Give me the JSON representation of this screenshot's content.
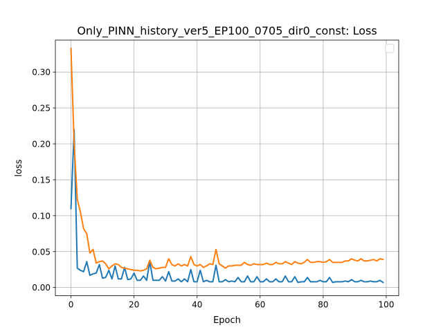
{
  "chart_data": {
    "type": "line",
    "title": "Only_PINN_history_ver5_EP100_0705_dir0_const: Loss",
    "xlabel": "Epoch",
    "ylabel": "loss",
    "xlim": [
      -4.95,
      103.95
    ],
    "ylim": [
      -0.0115,
      0.3445
    ],
    "xticks": [
      0,
      20,
      40,
      60,
      80,
      100
    ],
    "xtick_labels": [
      "0",
      "20",
      "40",
      "60",
      "80",
      "100"
    ],
    "yticks": [
      0.0,
      0.05,
      0.1,
      0.15,
      0.2,
      0.25,
      0.3
    ],
    "ytick_labels": [
      "0.00",
      "0.05",
      "0.10",
      "0.15",
      "0.20",
      "0.25",
      "0.30"
    ],
    "grid": true,
    "legend": "top-right (empty)",
    "series": [
      {
        "color": "#1f77b4",
        "x": [
          0,
          1,
          2,
          3,
          4,
          5,
          6,
          7,
          8,
          9,
          10,
          11,
          12,
          13,
          14,
          15,
          16,
          17,
          18,
          19,
          20,
          21,
          22,
          23,
          24,
          25,
          26,
          27,
          28,
          29,
          30,
          31,
          32,
          33,
          34,
          35,
          36,
          37,
          38,
          39,
          40,
          41,
          42,
          43,
          44,
          45,
          46,
          47,
          48,
          49,
          50,
          51,
          52,
          53,
          54,
          55,
          56,
          57,
          58,
          59,
          60,
          61,
          62,
          63,
          64,
          65,
          66,
          67,
          68,
          69,
          70,
          71,
          72,
          73,
          74,
          75,
          76,
          77,
          78,
          79,
          80,
          81,
          82,
          83,
          84,
          85,
          86,
          87,
          88,
          89,
          90,
          91,
          92,
          93,
          94,
          95,
          96,
          97,
          98,
          99
        ],
        "values": [
          0.11,
          0.22,
          0.027,
          0.024,
          0.022,
          0.036,
          0.017,
          0.019,
          0.02,
          0.032,
          0.013,
          0.014,
          0.024,
          0.012,
          0.03,
          0.012,
          0.012,
          0.028,
          0.011,
          0.012,
          0.02,
          0.01,
          0.01,
          0.016,
          0.01,
          0.036,
          0.01,
          0.01,
          0.01,
          0.015,
          0.009,
          0.022,
          0.009,
          0.009,
          0.012,
          0.008,
          0.012,
          0.008,
          0.025,
          0.008,
          0.008,
          0.024,
          0.008,
          0.01,
          0.008,
          0.008,
          0.031,
          0.008,
          0.008,
          0.011,
          0.008,
          0.009,
          0.008,
          0.014,
          0.008,
          0.008,
          0.016,
          0.008,
          0.008,
          0.015,
          0.008,
          0.008,
          0.012,
          0.008,
          0.008,
          0.012,
          0.008,
          0.008,
          0.016,
          0.008,
          0.008,
          0.015,
          0.007,
          0.008,
          0.008,
          0.014,
          0.008,
          0.008,
          0.008,
          0.01,
          0.008,
          0.008,
          0.014,
          0.007,
          0.008,
          0.008,
          0.008,
          0.009,
          0.008,
          0.011,
          0.008,
          0.008,
          0.01,
          0.008,
          0.008,
          0.009,
          0.008,
          0.008,
          0.01,
          0.007
        ]
      },
      {
        "color": "#ff7f0e",
        "x": [
          0,
          1,
          2,
          3,
          4,
          5,
          6,
          7,
          8,
          9,
          10,
          11,
          12,
          13,
          14,
          15,
          16,
          17,
          18,
          19,
          20,
          21,
          22,
          23,
          24,
          25,
          26,
          27,
          28,
          29,
          30,
          31,
          32,
          33,
          34,
          35,
          36,
          37,
          38,
          39,
          40,
          41,
          42,
          43,
          44,
          45,
          46,
          47,
          48,
          49,
          50,
          51,
          52,
          53,
          54,
          55,
          56,
          57,
          58,
          59,
          60,
          61,
          62,
          63,
          64,
          65,
          66,
          67,
          68,
          69,
          70,
          71,
          72,
          73,
          74,
          75,
          76,
          77,
          78,
          79,
          80,
          81,
          82,
          83,
          84,
          85,
          86,
          87,
          88,
          89,
          90,
          91,
          92,
          93,
          94,
          95,
          96,
          97,
          98,
          99
        ],
        "values": [
          0.333,
          0.2,
          0.123,
          0.105,
          0.082,
          0.075,
          0.048,
          0.053,
          0.034,
          0.036,
          0.037,
          0.033,
          0.026,
          0.03,
          0.033,
          0.032,
          0.028,
          0.027,
          0.026,
          0.025,
          0.024,
          0.024,
          0.023,
          0.024,
          0.026,
          0.038,
          0.028,
          0.026,
          0.027,
          0.028,
          0.028,
          0.04,
          0.032,
          0.03,
          0.033,
          0.03,
          0.032,
          0.03,
          0.043,
          0.032,
          0.03,
          0.032,
          0.028,
          0.03,
          0.033,
          0.032,
          0.053,
          0.033,
          0.03,
          0.027,
          0.03,
          0.03,
          0.031,
          0.031,
          0.031,
          0.035,
          0.032,
          0.031,
          0.033,
          0.032,
          0.032,
          0.032,
          0.034,
          0.032,
          0.032,
          0.035,
          0.033,
          0.033,
          0.036,
          0.034,
          0.032,
          0.036,
          0.034,
          0.033,
          0.035,
          0.039,
          0.035,
          0.035,
          0.036,
          0.036,
          0.035,
          0.036,
          0.039,
          0.035,
          0.035,
          0.035,
          0.035,
          0.037,
          0.037,
          0.04,
          0.038,
          0.037,
          0.04,
          0.037,
          0.037,
          0.038,
          0.039,
          0.037,
          0.04,
          0.039
        ]
      }
    ]
  }
}
